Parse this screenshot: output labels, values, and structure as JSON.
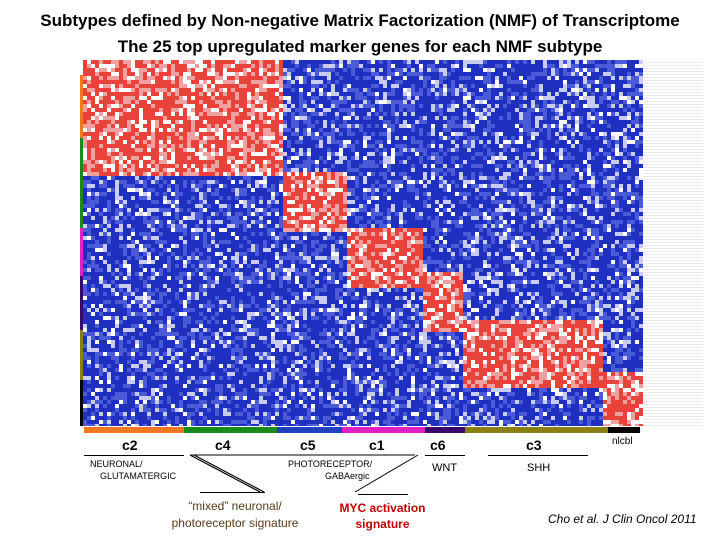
{
  "title_line1": "Subtypes defined by Non-negative Matrix Factorization (NMF) of Transcriptome",
  "title_line2": "The 25 top upregulated marker genes for each NMF subtype",
  "subtypes": {
    "c2": "c2",
    "c4": "c4",
    "c5": "c5",
    "c1": "c1",
    "c6": "c6",
    "c3": "c3",
    "nlcbl": "nlcbl"
  },
  "annotations": {
    "neuronal": "NEURONAL/",
    "glutamatergic": "GLUTAMATERGIC",
    "photoreceptor": "PHOTORECEPTOR/",
    "gabaergic": "GABAergic",
    "wnt": "WNT",
    "shh": "SHH",
    "mixed1": "“mixed” neuronal/",
    "mixed2": "photoreceptor signature",
    "myc1": "MYC activation",
    "myc2": "signature"
  },
  "citation": "Cho et al. J Clin Oncol 2011",
  "colors": {
    "c2": "#f07820",
    "c4": "#1a8a1a",
    "c5": "#2040c0",
    "c1": "#e020c0",
    "c6": "#3a0a6a",
    "c3": "#8a8010",
    "nlcbl": "#000000",
    "high": "#e03020",
    "low": "#2030c0"
  }
}
